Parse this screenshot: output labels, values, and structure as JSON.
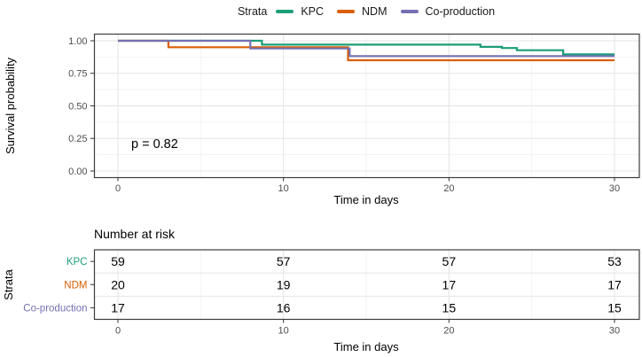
{
  "legend": {
    "title": "Strata",
    "items": [
      {
        "label": "KPC",
        "color": "#1B9E77"
      },
      {
        "label": "NDM",
        "color": "#D95F02"
      },
      {
        "label": "Co-production",
        "color": "#7570B3"
      }
    ]
  },
  "survival_plot": {
    "ylabel": "Survival probability",
    "xlabel": "Time in days",
    "pvalue": "p = 0.82",
    "xtick_labels": [
      "0",
      "10",
      "20",
      "30"
    ],
    "ytick_labels": [
      "0.00",
      "0.25",
      "0.50",
      "0.75",
      "1.00"
    ]
  },
  "risk_table": {
    "title": "Number at risk",
    "ylabel": "Strata",
    "xlabel": "Time in days",
    "xtick_labels": [
      "0",
      "10",
      "20",
      "30"
    ],
    "rows": [
      {
        "label": "KPC",
        "color": "#1B9E77",
        "values": [
          "59",
          "57",
          "57",
          "53"
        ]
      },
      {
        "label": "NDM",
        "color": "#D95F02",
        "values": [
          "20",
          "19",
          "17",
          "17"
        ]
      },
      {
        "label": "Co-production",
        "color": "#7570B3",
        "values": [
          "17",
          "16",
          "15",
          "15"
        ]
      }
    ]
  },
  "chart_data": [
    {
      "type": "line",
      "subtype": "kaplan-meier-step",
      "title": "",
      "xlabel": "Time in days",
      "ylabel": "Survival probability",
      "xlim": [
        0,
        30
      ],
      "ylim": [
        0,
        1
      ],
      "xticks": [
        0,
        10,
        20,
        30
      ],
      "xminor": [
        5,
        15,
        25
      ],
      "yticks": [
        0,
        0.25,
        0.5,
        0.75,
        1.0
      ],
      "yminor": [
        0.125,
        0.375,
        0.625,
        0.875
      ],
      "grid": true,
      "legend_position": "top",
      "annotation": {
        "text": "p = 0.82",
        "x": 2.5,
        "y": 0.18
      },
      "series": [
        {
          "name": "KPC",
          "color": "#1B9E77",
          "points": [
            [
              0,
              1.0
            ],
            [
              8.7,
              1.0
            ],
            [
              8.7,
              0.97
            ],
            [
              21.9,
              0.97
            ],
            [
              21.9,
              0.953
            ],
            [
              23.2,
              0.953
            ],
            [
              23.2,
              0.944
            ],
            [
              24.1,
              0.944
            ],
            [
              24.1,
              0.927
            ],
            [
              26.9,
              0.927
            ],
            [
              26.9,
              0.895
            ],
            [
              30,
              0.895
            ]
          ]
        },
        {
          "name": "NDM",
          "color": "#D95F02",
          "points": [
            [
              0,
              1.0
            ],
            [
              3.05,
              1.0
            ],
            [
              3.05,
              0.95
            ],
            [
              13.9,
              0.95
            ],
            [
              13.9,
              0.85
            ],
            [
              30,
              0.85
            ]
          ]
        },
        {
          "name": "Co-production",
          "color": "#7570B3",
          "points": [
            [
              0,
              1.0
            ],
            [
              8.0,
              1.0
            ],
            [
              8.0,
              0.941
            ],
            [
              14.0,
              0.941
            ],
            [
              14.0,
              0.882
            ],
            [
              30,
              0.882
            ]
          ]
        }
      ]
    },
    {
      "type": "table",
      "title": "Number at risk",
      "categories": [
        0,
        10,
        20,
        30
      ],
      "series": [
        {
          "name": "KPC",
          "values": [
            59,
            57,
            57,
            53
          ]
        },
        {
          "name": "NDM",
          "values": [
            20,
            19,
            17,
            17
          ]
        },
        {
          "name": "Co-production",
          "values": [
            17,
            16,
            15,
            15
          ]
        }
      ]
    }
  ],
  "style_colors": {
    "panel_border": "#3c3c3c",
    "grid_major": "#e4e4e4",
    "grid_minor": "#f2f2f2",
    "tick_mark": "#333333",
    "tick_label": "#4d4d4d",
    "text": "#000000"
  }
}
